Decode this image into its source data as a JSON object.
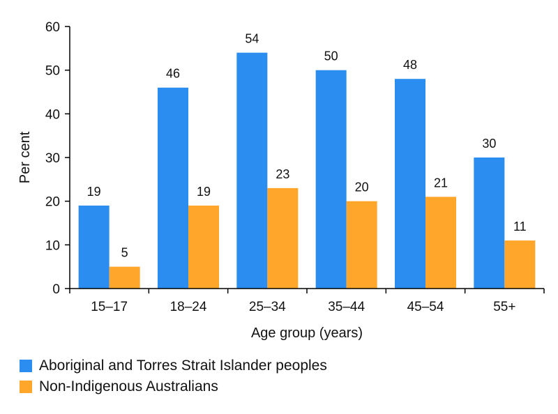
{
  "chart_data": {
    "type": "bar",
    "categories": [
      "15–17",
      "18–24",
      "25–34",
      "35–44",
      "45–54",
      "55+"
    ],
    "series": [
      {
        "name": "Aboriginal and Torres Strait Islander peoples",
        "values": [
          19,
          46,
          54,
          50,
          48,
          30
        ],
        "color": "#2b8def"
      },
      {
        "name": "Non-Indigenous Australians",
        "values": [
          5,
          19,
          23,
          20,
          21,
          11
        ],
        "color": "#ffa62b"
      }
    ],
    "xlabel": "Age group (years)",
    "ylabel": "Per cent",
    "ylim": [
      0,
      60
    ],
    "yticks": [
      0,
      10,
      20,
      30,
      40,
      50,
      60
    ],
    "grid": false,
    "legend_position": "bottom-left"
  }
}
